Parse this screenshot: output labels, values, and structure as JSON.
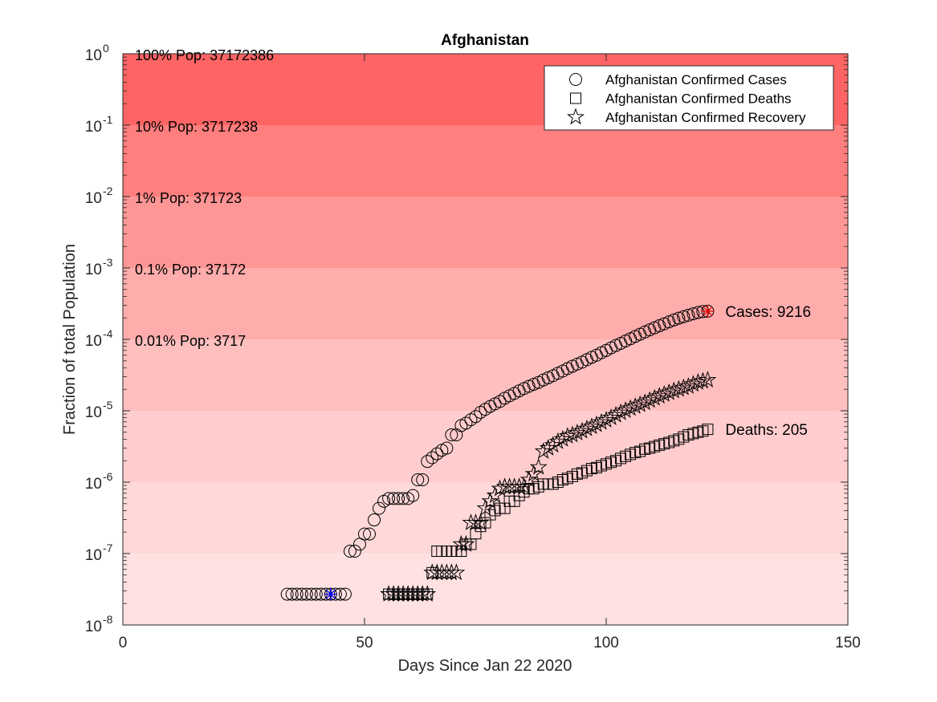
{
  "chart_data": {
    "type": "scatter",
    "title": "Afghanistan",
    "xlabel": "Days Since Jan 22 2020",
    "ylabel": "Fraction of total Population",
    "xlim": [
      0,
      150
    ],
    "ylim": [
      1e-08,
      1
    ],
    "yscale": "log",
    "x_ticks": [
      "0",
      "50",
      "100",
      "150"
    ],
    "y_ticks": [
      {
        "base": "10",
        "exp": "0"
      },
      {
        "base": "10",
        "exp": "-1"
      },
      {
        "base": "10",
        "exp": "-2"
      },
      {
        "base": "10",
        "exp": "-3"
      },
      {
        "base": "10",
        "exp": "-4"
      },
      {
        "base": "10",
        "exp": "-5"
      },
      {
        "base": "10",
        "exp": "-6"
      },
      {
        "base": "10",
        "exp": "-7"
      },
      {
        "base": "10",
        "exp": "-8"
      }
    ],
    "population_bands": [
      {
        "label": "100% Pop: 37172386",
        "fraction": 1,
        "color": "#ff6464"
      },
      {
        "label": "10% Pop: 3717238",
        "fraction": 0.1,
        "color": "#ff7e7e"
      },
      {
        "label": "1% Pop: 371723",
        "fraction": 0.01,
        "color": "#ff9696"
      },
      {
        "label": "0.1% Pop: 37172",
        "fraction": 0.001,
        "color": "#ffacac"
      },
      {
        "label": "0.01% Pop: 3717",
        "fraction": 0.0001,
        "color": "#ffbfbf"
      },
      {
        "label": "",
        "fraction": 1e-05,
        "color": "#ffcdcd"
      },
      {
        "label": "",
        "fraction": 1e-06,
        "color": "#ffd8d8"
      },
      {
        "label": "",
        "fraction": 1e-07,
        "color": "#ffe1e1"
      }
    ],
    "legend": {
      "placement": "top-right",
      "entries": [
        {
          "label": "Afghanistan Confirmed Cases",
          "marker": "circle"
        },
        {
          "label": "Afghanistan Confirmed Deaths",
          "marker": "square"
        },
        {
          "label": "Afghanistan Confirmed Recovery",
          "marker": "star"
        }
      ]
    },
    "series": [
      {
        "name": "Afghanistan Confirmed Cases",
        "marker": "circle",
        "points": [
          [
            34,
            2.7e-08
          ],
          [
            35,
            2.7e-08
          ],
          [
            36,
            2.7e-08
          ],
          [
            37,
            2.7e-08
          ],
          [
            38,
            2.7e-08
          ],
          [
            39,
            2.7e-08
          ],
          [
            40,
            2.7e-08
          ],
          [
            41,
            2.7e-08
          ],
          [
            42,
            2.7e-08
          ],
          [
            43,
            2.7e-08
          ],
          [
            44,
            2.7e-08
          ],
          [
            45,
            2.7e-08
          ],
          [
            46,
            2.7e-08
          ],
          [
            47,
            1.08e-07
          ],
          [
            48,
            1.08e-07
          ],
          [
            49,
            1.35e-07
          ],
          [
            50,
            1.88e-07
          ],
          [
            51,
            1.88e-07
          ],
          [
            52,
            2.96e-07
          ],
          [
            53,
            4.3e-07
          ],
          [
            54,
            5.4e-07
          ],
          [
            55,
            5.9e-07
          ],
          [
            56,
            5.9e-07
          ],
          [
            57,
            5.9e-07
          ],
          [
            58,
            5.9e-07
          ],
          [
            59,
            5.9e-07
          ],
          [
            60,
            6.5e-07
          ],
          [
            61,
            1.08e-06
          ],
          [
            62,
            1.08e-06
          ],
          [
            63,
            1.95e-06
          ],
          [
            64,
            2.2e-06
          ],
          [
            65,
            2.5e-06
          ],
          [
            66,
            2.8e-06
          ],
          [
            67,
            3e-06
          ],
          [
            68,
            4.6e-06
          ],
          [
            69,
            4.6e-06
          ],
          [
            70,
            6.2e-06
          ],
          [
            71,
            6.7e-06
          ],
          [
            72,
            7.5e-06
          ],
          [
            73,
            8.3e-06
          ],
          [
            74,
            9.5e-06
          ],
          [
            75,
            1.05e-05
          ],
          [
            76,
            1.15e-05
          ],
          [
            77,
            1.25e-05
          ],
          [
            78,
            1.35e-05
          ],
          [
            79,
            1.5e-05
          ],
          [
            80,
            1.62e-05
          ],
          [
            81,
            1.75e-05
          ],
          [
            82,
            1.9e-05
          ],
          [
            83,
            2.05e-05
          ],
          [
            84,
            2.2e-05
          ],
          [
            85,
            2.35e-05
          ],
          [
            86,
            2.5e-05
          ],
          [
            87,
            2.7e-05
          ],
          [
            88,
            2.9e-05
          ],
          [
            89,
            3.1e-05
          ],
          [
            90,
            3.35e-05
          ],
          [
            91,
            3.6e-05
          ],
          [
            92,
            3.9e-05
          ],
          [
            93,
            4.2e-05
          ],
          [
            94,
            4.5e-05
          ],
          [
            95,
            4.8e-05
          ],
          [
            96,
            5.2e-05
          ],
          [
            97,
            5.6e-05
          ],
          [
            98,
            6e-05
          ],
          [
            99,
            6.5e-05
          ],
          [
            100,
            7e-05
          ],
          [
            101,
            7.6e-05
          ],
          [
            102,
            8.2e-05
          ],
          [
            103,
            8.8e-05
          ],
          [
            104,
            9.5e-05
          ],
          [
            105,
            0.000102
          ],
          [
            106,
            0.00011
          ],
          [
            107,
            0.000118
          ],
          [
            108,
            0.000127
          ],
          [
            109,
            0.000136
          ],
          [
            110,
            0.000145
          ],
          [
            111,
            0.000155
          ],
          [
            112,
            0.000165
          ],
          [
            113,
            0.000176
          ],
          [
            114,
            0.000187
          ],
          [
            115,
            0.000198
          ],
          [
            116,
            0.000208
          ],
          [
            117,
            0.000218
          ],
          [
            118,
            0.000228
          ],
          [
            119,
            0.000238
          ],
          [
            120,
            0.000245
          ],
          [
            121,
            0.000248
          ]
        ]
      },
      {
        "name": "Afghanistan Confirmed Deaths",
        "marker": "square",
        "points": [
          [
            55,
            2.7e-08
          ],
          [
            56,
            2.7e-08
          ],
          [
            57,
            2.7e-08
          ],
          [
            58,
            2.7e-08
          ],
          [
            59,
            2.7e-08
          ],
          [
            60,
            2.7e-08
          ],
          [
            61,
            2.7e-08
          ],
          [
            62,
            2.7e-08
          ],
          [
            63,
            2.7e-08
          ],
          [
            64,
            5.4e-08
          ],
          [
            65,
            1.08e-07
          ],
          [
            66,
            1.08e-07
          ],
          [
            67,
            1.08e-07
          ],
          [
            68,
            1.08e-07
          ],
          [
            69,
            1.08e-07
          ],
          [
            70,
            1.08e-07
          ],
          [
            71,
            1.35e-07
          ],
          [
            72,
            1.35e-07
          ],
          [
            73,
            1.9e-07
          ],
          [
            74,
            2.4e-07
          ],
          [
            75,
            2.7e-07
          ],
          [
            76,
            3.5e-07
          ],
          [
            77,
            4e-07
          ],
          [
            78,
            4.3e-07
          ],
          [
            79,
            4.3e-07
          ],
          [
            80,
            5.4e-07
          ],
          [
            81,
            5.4e-07
          ],
          [
            82,
            6.5e-07
          ],
          [
            83,
            7.3e-07
          ],
          [
            84,
            8.1e-07
          ],
          [
            85,
            8.1e-07
          ],
          [
            86,
            8.6e-07
          ],
          [
            87,
            9.4e-07
          ],
          [
            88,
            9.4e-07
          ],
          [
            89,
            9.4e-07
          ],
          [
            90,
            1e-06
          ],
          [
            91,
            1.08e-06
          ],
          [
            92,
            1.13e-06
          ],
          [
            93,
            1.2e-06
          ],
          [
            94,
            1.3e-06
          ],
          [
            95,
            1.35e-06
          ],
          [
            96,
            1.45e-06
          ],
          [
            97,
            1.55e-06
          ],
          [
            98,
            1.6e-06
          ],
          [
            99,
            1.7e-06
          ],
          [
            100,
            1.8e-06
          ],
          [
            101,
            1.9e-06
          ],
          [
            102,
            2e-06
          ],
          [
            103,
            2.15e-06
          ],
          [
            104,
            2.3e-06
          ],
          [
            105,
            2.45e-06
          ],
          [
            106,
            2.6e-06
          ],
          [
            107,
            2.7e-06
          ],
          [
            108,
            2.9e-06
          ],
          [
            109,
            3e-06
          ],
          [
            110,
            3.15e-06
          ],
          [
            111,
            3.3e-06
          ],
          [
            112,
            3.45e-06
          ],
          [
            113,
            3.6e-06
          ],
          [
            114,
            3.8e-06
          ],
          [
            115,
            4e-06
          ],
          [
            116,
            4.3e-06
          ],
          [
            117,
            4.6e-06
          ],
          [
            118,
            4.8e-06
          ],
          [
            119,
            5e-06
          ],
          [
            120,
            5.2e-06
          ],
          [
            121,
            5.5e-06
          ]
        ]
      },
      {
        "name": "Afghanistan Confirmed Recovery",
        "marker": "star",
        "points": [
          [
            55,
            2.7e-08
          ],
          [
            56,
            2.7e-08
          ],
          [
            57,
            2.7e-08
          ],
          [
            58,
            2.7e-08
          ],
          [
            59,
            2.7e-08
          ],
          [
            60,
            2.7e-08
          ],
          [
            61,
            2.7e-08
          ],
          [
            62,
            2.7e-08
          ],
          [
            63,
            2.7e-08
          ],
          [
            64,
            5.4e-08
          ],
          [
            65,
            5.4e-08
          ],
          [
            66,
            5.4e-08
          ],
          [
            67,
            5.4e-08
          ],
          [
            68,
            5.4e-08
          ],
          [
            69,
            5.4e-08
          ],
          [
            70,
            1.35e-07
          ],
          [
            71,
            1.35e-07
          ],
          [
            72,
            2.7e-07
          ],
          [
            73,
            2.7e-07
          ],
          [
            74,
            2.7e-07
          ],
          [
            75,
            4.3e-07
          ],
          [
            76,
            5.4e-07
          ],
          [
            77,
            6.5e-07
          ],
          [
            78,
            8.1e-07
          ],
          [
            79,
            8.6e-07
          ],
          [
            80,
            8.6e-07
          ],
          [
            81,
            8.6e-07
          ],
          [
            82,
            8.6e-07
          ],
          [
            83,
            8.6e-07
          ],
          [
            84,
            1.08e-06
          ],
          [
            85,
            1.3e-06
          ],
          [
            86,
            1.62e-06
          ],
          [
            87,
            2.7e-06
          ],
          [
            88,
            3e-06
          ],
          [
            89,
            3.3e-06
          ],
          [
            90,
            3.7e-06
          ],
          [
            91,
            4e-06
          ],
          [
            92,
            4.4e-06
          ],
          [
            93,
            4.6e-06
          ],
          [
            94,
            4.9e-06
          ],
          [
            95,
            5.2e-06
          ],
          [
            96,
            5.6e-06
          ],
          [
            97,
            6e-06
          ],
          [
            98,
            6.4e-06
          ],
          [
            99,
            6.9e-06
          ],
          [
            100,
            7.4e-06
          ],
          [
            101,
            8e-06
          ],
          [
            102,
            8.7e-06
          ],
          [
            103,
            9.4e-06
          ],
          [
            104,
            1.01e-05
          ],
          [
            105,
            1.08e-05
          ],
          [
            106,
            1.15e-05
          ],
          [
            107,
            1.22e-05
          ],
          [
            108,
            1.3e-05
          ],
          [
            109,
            1.4e-05
          ],
          [
            110,
            1.5e-05
          ],
          [
            111,
            1.6e-05
          ],
          [
            112,
            1.7e-05
          ],
          [
            113,
            1.8e-05
          ],
          [
            114,
            1.9e-05
          ],
          [
            115,
            2e-05
          ],
          [
            116,
            2.1e-05
          ],
          [
            117,
            2.2e-05
          ],
          [
            118,
            2.35e-05
          ],
          [
            119,
            2.5e-05
          ],
          [
            120,
            2.6e-05
          ],
          [
            121,
            2.7e-05
          ]
        ]
      }
    ],
    "annotations": [
      {
        "text": "Cases: 9216",
        "x": 121,
        "y": 0.000248,
        "series": "Afghanistan Confirmed Cases"
      },
      {
        "text": "Deaths: 205",
        "x": 121,
        "y": 5.5e-06,
        "series": "Afghanistan Confirmed Deaths"
      }
    ],
    "highlight_markers": [
      {
        "x": 43,
        "y": 2.7e-08,
        "color": "#0000ff"
      },
      {
        "x": 121,
        "y": 0.000248,
        "color": "#e00000"
      }
    ],
    "grid": false
  }
}
